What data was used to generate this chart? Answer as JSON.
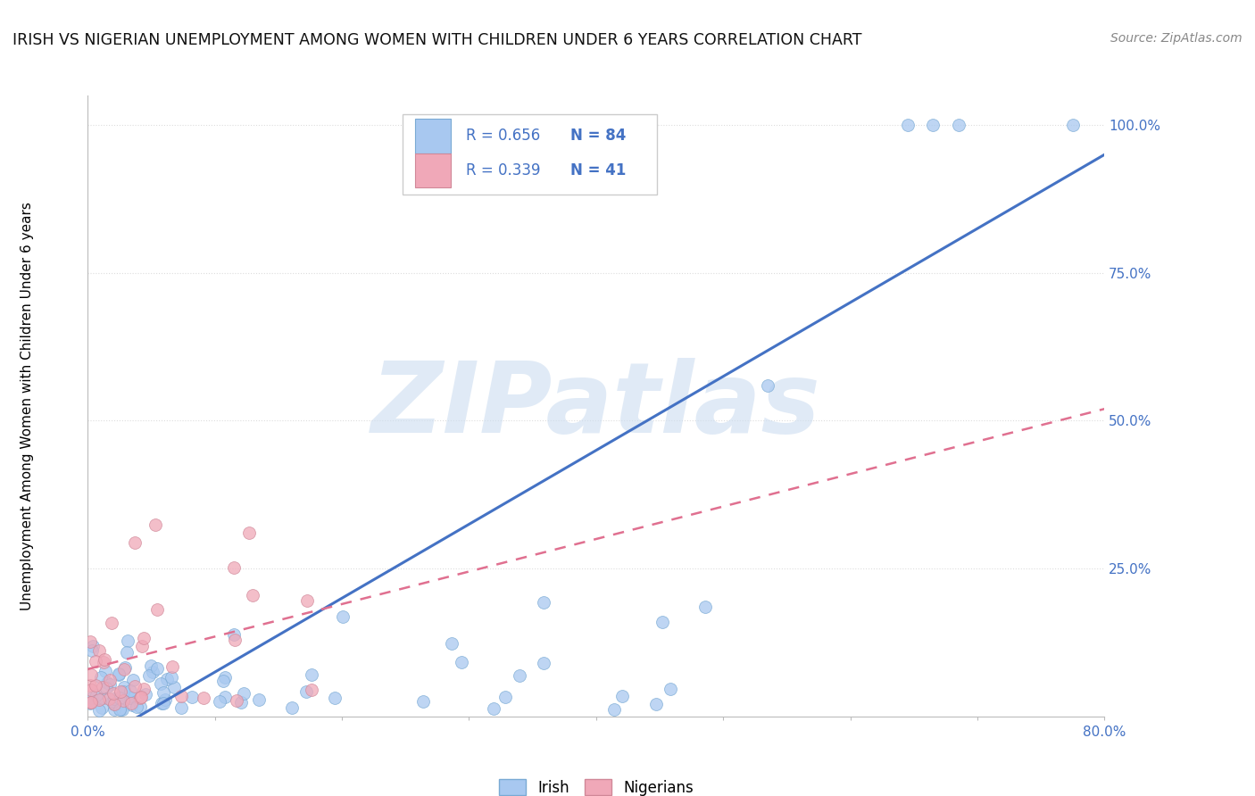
{
  "title": "IRISH VS NIGERIAN UNEMPLOYMENT AMONG WOMEN WITH CHILDREN UNDER 6 YEARS CORRELATION CHART",
  "source": "Source: ZipAtlas.com",
  "ylabel": "Unemployment Among Women with Children Under 6 years",
  "xlim": [
    0.0,
    0.8
  ],
  "ylim": [
    0.0,
    1.05
  ],
  "irish_R": 0.656,
  "irish_N": 84,
  "nigerian_R": 0.339,
  "nigerian_N": 41,
  "irish_color": "#a8c8f0",
  "nigerian_color": "#f0a8b8",
  "irish_edge_color": "#7aaad4",
  "nigerian_edge_color": "#d08898",
  "irish_line_color": "#4472c4",
  "nigerian_line_color": "#e07090",
  "watermark": "ZIPatlas",
  "grid_color": "#dddddd",
  "tick_label_color": "#4472c4",
  "title_color": "#111111",
  "source_color": "#888888"
}
